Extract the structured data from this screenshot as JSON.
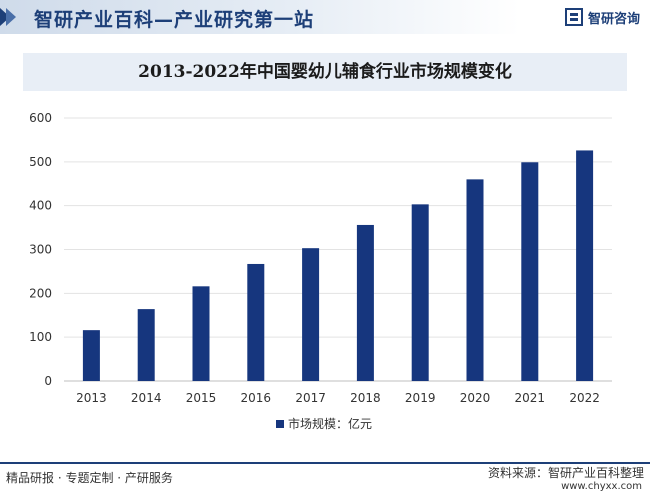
{
  "header": {
    "site_title": "智研产业百科—产业研究第一站",
    "brand_name": "智研咨询",
    "colors": {
      "brand": "#1d3f78",
      "bar": "#16367e"
    }
  },
  "chart_data": {
    "type": "bar",
    "title": "2013-2022年中国婴幼儿辅食行业市场规模变化",
    "categories": [
      "2013",
      "2014",
      "2015",
      "2016",
      "2017",
      "2018",
      "2019",
      "2020",
      "2021",
      "2022"
    ],
    "series": [
      {
        "name": "市场规模：亿元",
        "values": [
          116,
          164,
          216,
          267,
          303,
          356,
          403,
          460,
          499,
          526
        ]
      }
    ],
    "xlabel": "",
    "ylabel": "",
    "ylim": [
      0,
      600
    ],
    "yticks": [
      0,
      100,
      200,
      300,
      400,
      500,
      600
    ],
    "grid": true,
    "legend": "bottom-center"
  },
  "footer": {
    "slogan": "精品研报 · 专题定制 · 产研服务",
    "source": "资料来源：智研产业百科整理",
    "url": "www.chyxx.com"
  }
}
